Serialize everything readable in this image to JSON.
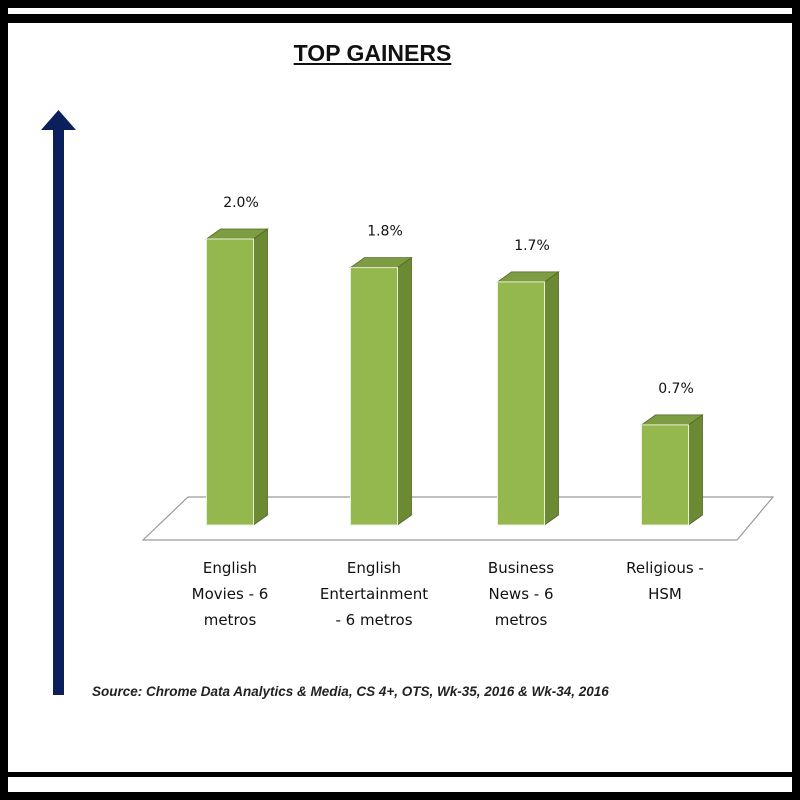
{
  "chart_data": {
    "type": "bar",
    "title": "TOP GAINERS",
    "categories": [
      "English Movies - 6 metros",
      "English Entertainment - 6 metros",
      "Business News - 6 metros",
      "Religious - HSM"
    ],
    "category_lines": [
      [
        "English",
        "Movies - 6",
        "metros"
      ],
      [
        "English",
        "Entertainment",
        "- 6 metros"
      ],
      [
        "Business",
        "News - 6",
        "metros"
      ],
      [
        "Religious -",
        "HSM"
      ]
    ],
    "values": [
      2.0,
      1.8,
      1.7,
      0.7
    ],
    "value_labels": [
      "2.0%",
      "1.8%",
      "1.7%",
      "0.7%"
    ],
    "xlabel": "",
    "ylabel": "",
    "ylim": [
      0,
      2.0
    ],
    "grid": false,
    "legend": "none",
    "colors": {
      "bar_front": "#94b74e",
      "bar_side": "#6b8a33",
      "bar_top": "#7e9c42",
      "arrow": "#0a1f5c"
    }
  },
  "source": "Source: Chrome Data Analytics & Media, CS 4+, OTS, Wk-35, 2016 & Wk-34, 2016"
}
